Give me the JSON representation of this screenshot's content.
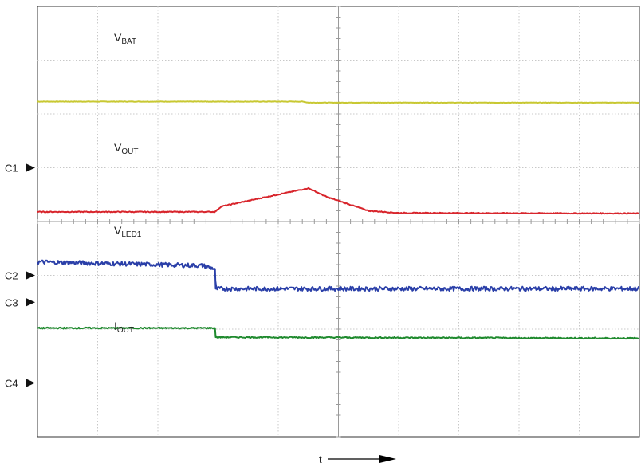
{
  "chart_data": {
    "type": "line",
    "channels": [
      {
        "name": "C1",
        "label": "V",
        "sub": "BAT",
        "color": "#c8c832"
      },
      {
        "name": "C2",
        "label": "V",
        "sub": "OUT",
        "color": "#d8252c"
      },
      {
        "name": "C3",
        "label": "V",
        "sub": "LED1",
        "color": "#2a3fa8"
      },
      {
        "name": "C4",
        "label": "I",
        "sub": "OUT",
        "color": "#1f8a2e"
      }
    ],
    "xlabel": "t",
    "grid": true,
    "x_divisions": 10,
    "y_divisions": 8,
    "series": [
      {
        "name": "VBAT",
        "color": "#c8c832",
        "noise": 0.004,
        "points": [
          [
            0,
            6.23
          ],
          [
            4.4,
            6.23
          ],
          [
            4.5,
            6.21
          ],
          [
            10,
            6.21
          ]
        ]
      },
      {
        "name": "VOUT",
        "color": "#d8252c",
        "noise": 0.008,
        "points": [
          [
            0,
            4.18
          ],
          [
            2.95,
            4.18
          ],
          [
            3.05,
            4.28
          ],
          [
            4.5,
            4.62
          ],
          [
            4.8,
            4.46
          ],
          [
            5.5,
            4.2
          ],
          [
            6,
            4.16
          ],
          [
            10,
            4.15
          ]
        ]
      },
      {
        "name": "VLED1",
        "color": "#2a3fa8",
        "noise": 0.04,
        "points": [
          [
            0,
            3.25
          ],
          [
            2.75,
            3.18
          ],
          [
            2.95,
            3.12
          ],
          [
            2.96,
            2.75
          ],
          [
            10,
            2.75
          ]
        ]
      },
      {
        "name": "IOUT",
        "color": "#1f8a2e",
        "noise": 0.012,
        "points": [
          [
            0,
            2.02
          ],
          [
            2.95,
            2.02
          ],
          [
            2.96,
            1.85
          ],
          [
            10,
            1.83
          ]
        ]
      }
    ],
    "markers": [
      {
        "name": "C1",
        "y": 5.0
      },
      {
        "name": "C2",
        "y": 3.0
      },
      {
        "name": "C3",
        "y": 2.5
      },
      {
        "name": "C4",
        "y": 1.0
      }
    ],
    "ylim": [
      0,
      8
    ],
    "xlim": [
      0,
      10
    ]
  }
}
